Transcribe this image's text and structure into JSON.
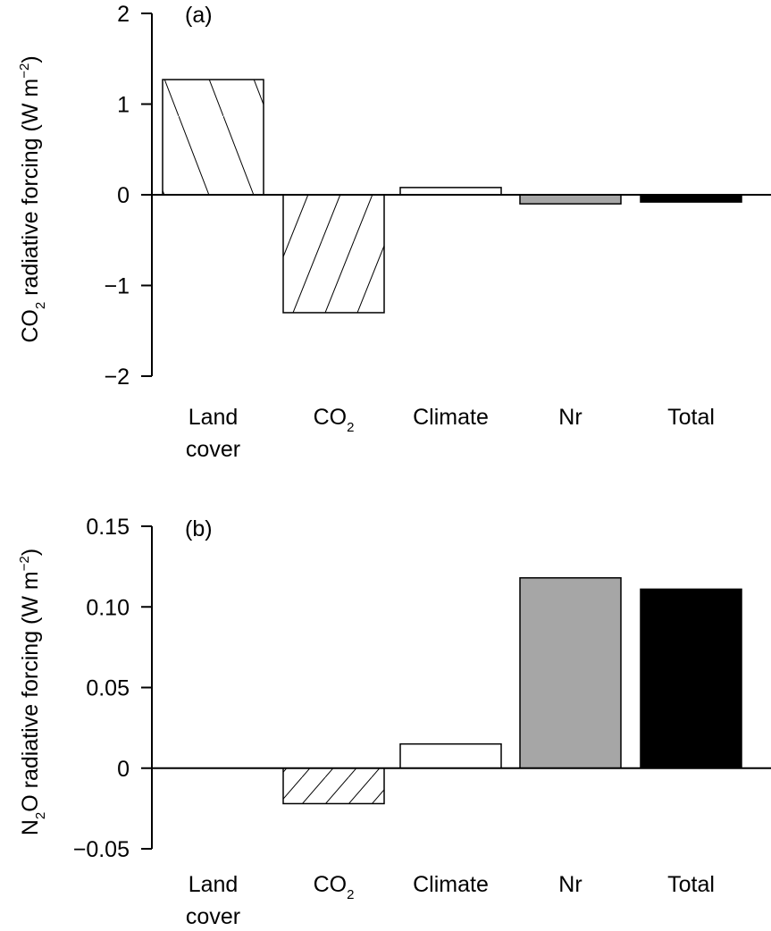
{
  "chart_data": [
    {
      "type": "bar",
      "panel_label": "(a)",
      "ylabel": {
        "prefix": "CO",
        "sub": "2",
        "suffix": " radiative forcing (W m",
        "sup": "−2",
        "close": ")"
      },
      "categories": [
        {
          "lines": [
            "Land",
            "cover"
          ]
        },
        {
          "lines": [
            "CO"
          ],
          "sub": "2"
        },
        {
          "lines": [
            "Climate"
          ]
        },
        {
          "lines": [
            "Nr"
          ]
        },
        {
          "lines": [
            "Total"
          ]
        }
      ],
      "values": [
        1.27,
        -1.3,
        0.08,
        -0.1,
        -0.08
      ],
      "fills": [
        "hatch-back",
        "hatch-fwd",
        "#ffffff",
        "#a6a6a6",
        "#000000"
      ],
      "ylim": [
        -2,
        2
      ],
      "ticks": [
        2,
        1,
        0,
        -1,
        -2
      ],
      "tick_labels": [
        "2",
        "1",
        "0",
        "−1",
        "−2"
      ],
      "grid": false
    },
    {
      "type": "bar",
      "panel_label": "(b)",
      "ylabel": {
        "prefix": "N",
        "sub": "2",
        "suffix": "O radiative forcing (W m",
        "sup": "−2",
        "close": ")"
      },
      "categories": [
        {
          "lines": [
            "Land",
            "cover"
          ]
        },
        {
          "lines": [
            "CO"
          ],
          "sub": "2"
        },
        {
          "lines": [
            "Climate"
          ]
        },
        {
          "lines": [
            "Nr"
          ]
        },
        {
          "lines": [
            "Total"
          ]
        }
      ],
      "values": [
        0,
        -0.022,
        0.015,
        0.118,
        0.111
      ],
      "fills": [
        "none",
        "hatch-fwd",
        "#ffffff",
        "#a6a6a6",
        "#000000"
      ],
      "ylim": [
        -0.05,
        0.15
      ],
      "ticks": [
        0.15,
        0.1,
        0.05,
        0,
        -0.05
      ],
      "tick_labels": [
        "0.15",
        "0.10",
        "0.05",
        "0",
        "−0.05"
      ],
      "grid": false
    }
  ]
}
